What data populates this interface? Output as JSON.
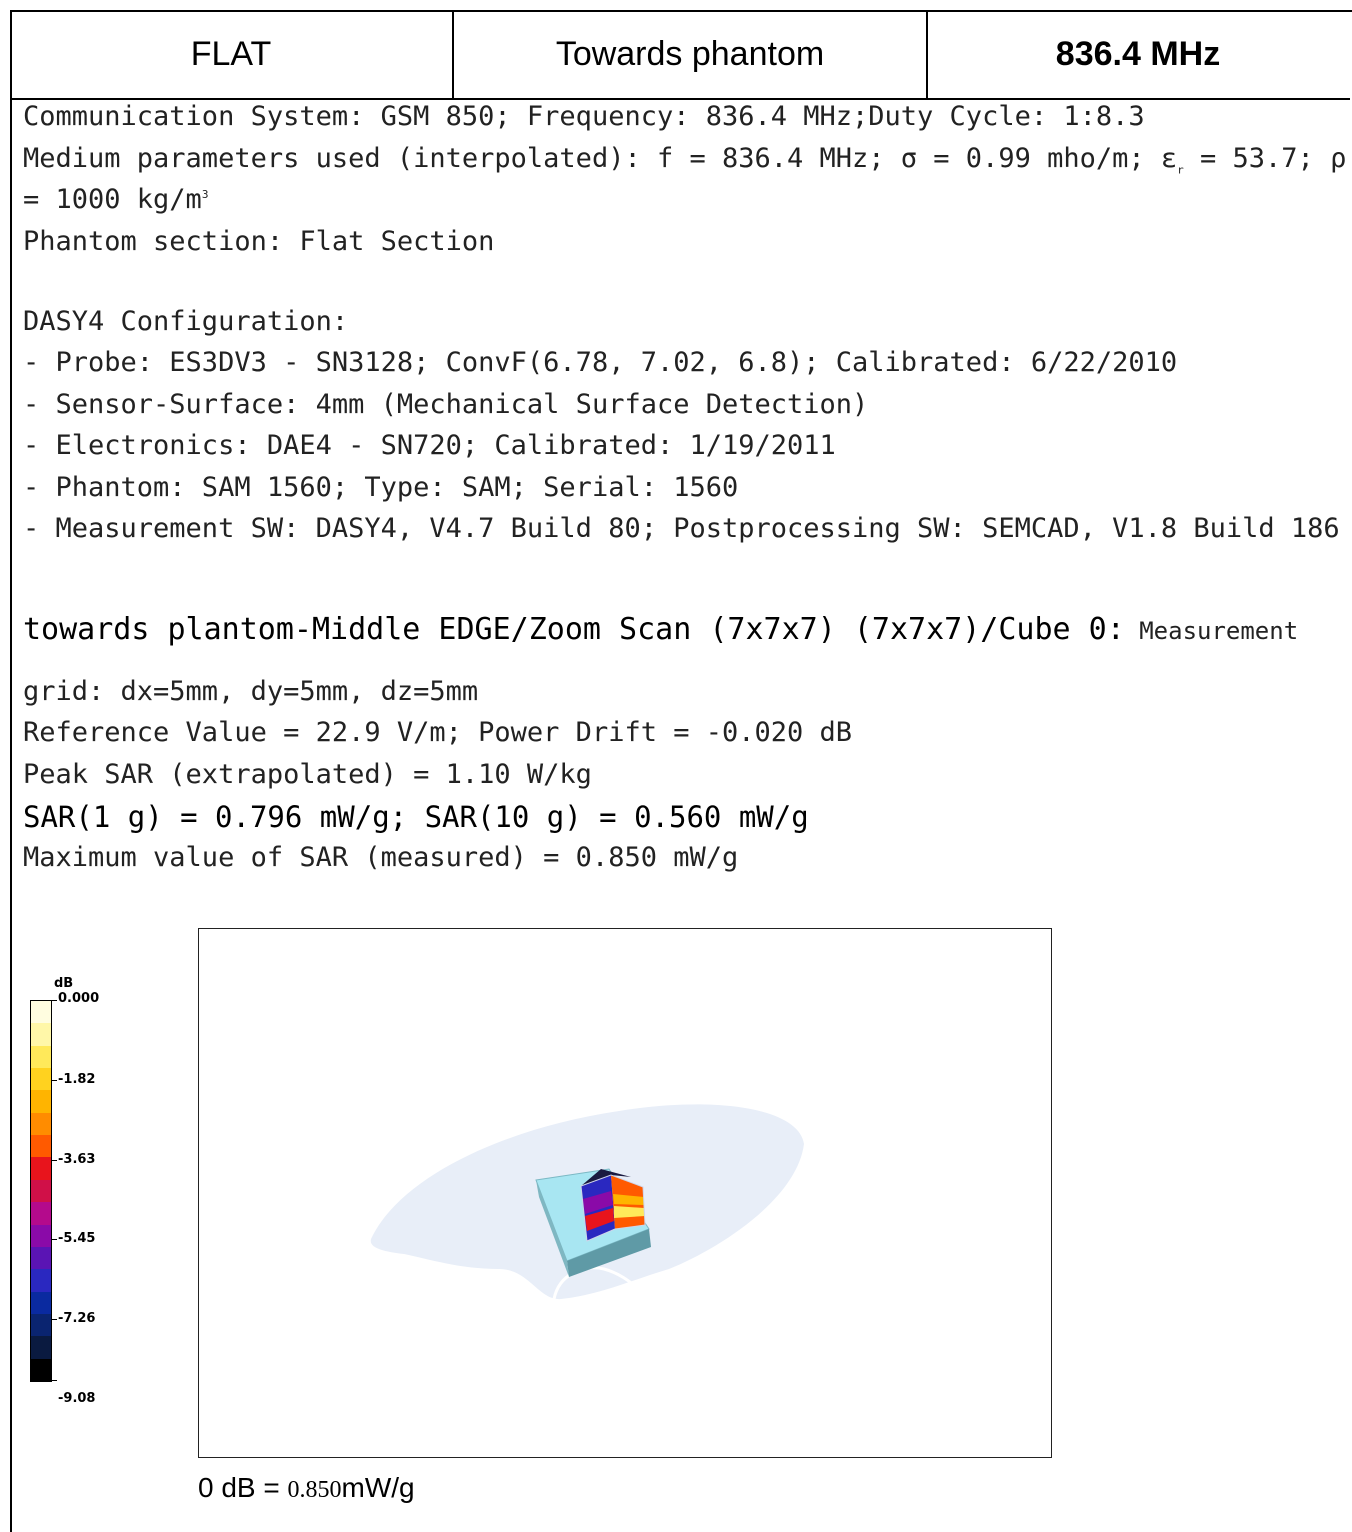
{
  "header": {
    "cells": [
      "FLAT",
      "Towards phantom",
      "836.4 MHz"
    ]
  },
  "text": {
    "comm": "Communication System: GSM 850; Frequency: 836.4 MHz;Duty Cycle: 1:8.3",
    "medium1": "Medium parameters used (interpolated): f = 836.4 MHz; σ = 0.99 mho/m; ε",
    "medium_sub": "r",
    "medium2": " = 53.7; ρ",
    "medium3": "= 1000 kg/m",
    "medium_sup": "3",
    "phantom_section": "Phantom section: Flat Section",
    "config_title": "DASY4 Configuration:",
    "config": [
      "- Probe: ES3DV3 - SN3128; ConvF(6.78, 7.02, 6.8); Calibrated: 6/22/2010",
      "- Sensor-Surface: 4mm (Mechanical Surface Detection)",
      "- Electronics: DAE4 - SN720; Calibrated: 1/19/2011",
      "- Phantom: SAM 1560; Type: SAM; Serial: 1560",
      "- Measurement SW: DASY4, V4.7 Build 80; Postprocessing SW: SEMCAD, V1.8 Build 186"
    ],
    "scan_title": "towards plantom-Middle EDGE/Zoom Scan (7x7x7) (7x7x7)/Cube 0:",
    "scan_title_tail": " Measurement",
    "grid": "grid: dx=5mm, dy=5mm, dz=5mm",
    "reference": "Reference Value = 22.9 V/m; Power Drift = -0.020 dB",
    "peak": "Peak SAR (extrapolated) = 1.10 W/kg",
    "sar": "SAR(1 g) = 0.796 mW/g; SAR(10 g) = 0.560 mW/g",
    "max": "Maximum value of SAR (measured) = 0.850 mW/g"
  },
  "legend": {
    "unit": "dB",
    "labels": [
      "0.000",
      "-1.82",
      "-3.63",
      "-5.45",
      "-7.26",
      "-9.08"
    ],
    "colors": [
      "#fffde0",
      "#fff7a8",
      "#ffe95a",
      "#ffd21f",
      "#ffb400",
      "#ff8c00",
      "#ff5a00",
      "#e8141c",
      "#d01048",
      "#b40a8c",
      "#8a0aa8",
      "#5a14b4",
      "#2a28c0",
      "#0a2aa0",
      "#0a2470",
      "#0a1a40",
      "#000000"
    ]
  },
  "footer": {
    "prefix": "0 dB = ",
    "value": "0.850",
    "unit": "mW/g"
  }
}
